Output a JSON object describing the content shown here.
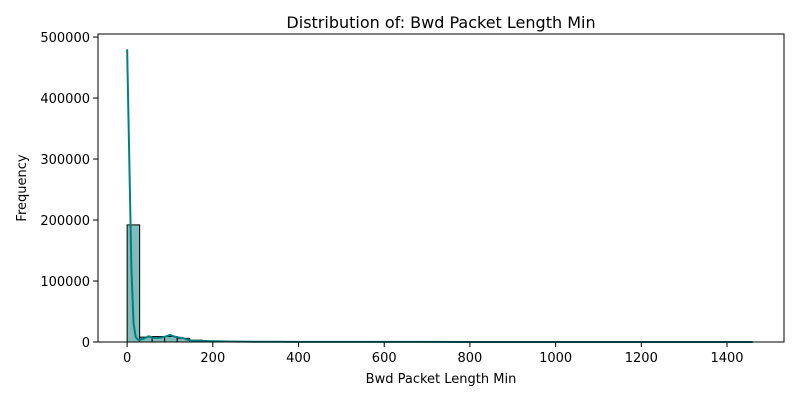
{
  "chart_data": {
    "type": "bar",
    "title": "Distribution of: Bwd Packet Length Min",
    "xlabel": "Bwd Packet Length Min",
    "ylabel": "Frequency",
    "xlim": [
      -68,
      1533
    ],
    "ylim": [
      0,
      505000
    ],
    "x_ticks": [
      0,
      200,
      400,
      600,
      800,
      1000,
      1200,
      1400
    ],
    "y_ticks": [
      0,
      100000,
      200000,
      300000,
      400000,
      500000
    ],
    "grid": false,
    "bins": {
      "width": 29.2,
      "lefts": [
        0,
        29.2,
        58.4,
        87.6,
        116.8,
        146.0,
        175.2,
        204.4,
        233.6,
        262.8,
        292.0,
        321.2,
        350.4,
        379.6,
        408.8
      ],
      "values": [
        192000,
        8000,
        9000,
        9000,
        6000,
        3000,
        1500,
        1200,
        800,
        600,
        500,
        400,
        300,
        250,
        200
      ]
    },
    "kde": {
      "x": [
        0,
        5,
        10,
        15,
        20,
        25,
        30,
        40,
        50,
        60,
        70,
        80,
        90,
        100,
        110,
        120,
        130,
        140,
        150,
        160,
        175,
        190,
        210,
        240,
        270,
        300,
        350,
        400,
        500,
        600,
        700,
        800,
        900,
        1000,
        1100,
        1200,
        1300,
        1400,
        1460
      ],
      "y": [
        480000,
        300000,
        120000,
        30000,
        8000,
        4000,
        3500,
        6000,
        9500,
        7000,
        6500,
        7500,
        9000,
        11500,
        9000,
        7500,
        6500,
        4000,
        2500,
        2000,
        1800,
        1500,
        1200,
        900,
        700,
        500,
        400,
        300,
        200,
        150,
        120,
        100,
        100,
        100,
        100,
        100,
        100,
        100,
        100
      ]
    },
    "colors": {
      "bar_fill": "#80bcbc",
      "bar_edge": "#000000",
      "kde_line": "#008080"
    }
  }
}
